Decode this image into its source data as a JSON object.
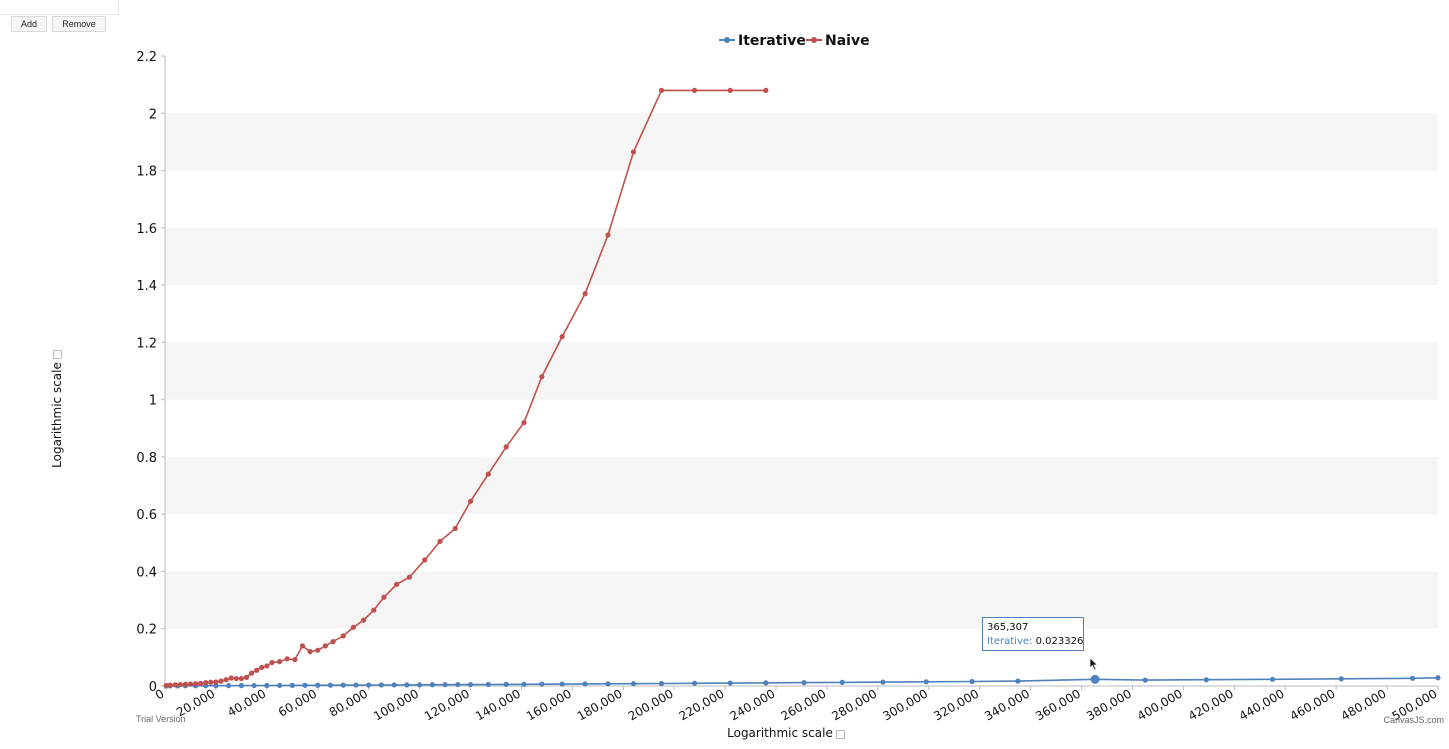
{
  "controls": {
    "add_label": "Add",
    "remove_label": "Remove"
  },
  "y_axis_checkbox_label": "Logarithmic scale",
  "x_axis_checkbox_label": "Logarithmic scale",
  "watermark_left": "Trial Version",
  "watermark_right": "CanvasJS.com",
  "tooltip": {
    "x_value": "365,307",
    "series_name": "Iterative:",
    "y_value": "0.023326"
  },
  "colors": {
    "iterative": "#4f81bc",
    "naive": "#c0504d",
    "band": "#f5f5f5",
    "axis": "#bbbbbb"
  },
  "chart_data": {
    "type": "line",
    "title": "",
    "xlabel": "Logarithmic scale",
    "ylabel": "Logarithmic scale",
    "xlim": [
      0,
      500000
    ],
    "ylim": [
      0,
      2.2
    ],
    "x_ticks": [
      "0",
      "20,000",
      "40,000",
      "60,000",
      "80,000",
      "100,000",
      "120,000",
      "140,000",
      "160,000",
      "180,000",
      "200,000",
      "220,000",
      "240,000",
      "260,000",
      "280,000",
      "300,000",
      "320,000",
      "340,000",
      "360,000",
      "380,000",
      "400,000",
      "420,000",
      "440,000",
      "460,000",
      "480,000",
      "500,000"
    ],
    "y_ticks": [
      "0",
      "0.2",
      "0.4",
      "0.6",
      "0.8",
      "1",
      "1.2",
      "1.4",
      "1.6",
      "1.8",
      "2",
      "2.2"
    ],
    "legend": "top-center",
    "grid": "alternating horizontal bands",
    "series": [
      {
        "name": "Iterative",
        "x": [
          500,
          2000,
          5000,
          8000,
          12000,
          16000,
          20000,
          25000,
          30000,
          35000,
          40000,
          45000,
          50000,
          55000,
          60000,
          65000,
          70000,
          75000,
          80000,
          85000,
          90000,
          95000,
          100000,
          105000,
          110000,
          115000,
          120000,
          127000,
          134000,
          141000,
          148000,
          156000,
          165000,
          174000,
          184000,
          195000,
          208000,
          222000,
          236000,
          251000,
          266000,
          282000,
          299000,
          317000,
          335000,
          365307,
          385000,
          409000,
          435000,
          462000,
          490000,
          519000
        ],
        "y": [
          0.0,
          0.0002,
          0.0004,
          0.0006,
          0.0008,
          0.001,
          0.0011,
          0.0012,
          0.0014,
          0.0016,
          0.0018,
          0.002,
          0.0022,
          0.0024,
          0.0026,
          0.0028,
          0.003,
          0.0032,
          0.0034,
          0.0036,
          0.0038,
          0.004,
          0.0042,
          0.0044,
          0.0046,
          0.0048,
          0.005,
          0.0053,
          0.0056,
          0.006,
          0.0064,
          0.0068,
          0.0072,
          0.0077,
          0.0082,
          0.0088,
          0.0095,
          0.0103,
          0.011,
          0.0118,
          0.0126,
          0.0136,
          0.0147,
          0.0158,
          0.0172,
          0.023326,
          0.0205,
          0.0219,
          0.0233,
          0.025,
          0.0268,
          0.0287
        ]
      },
      {
        "name": "Naive",
        "x": [
          500,
          2000,
          4000,
          6000,
          8000,
          10000,
          12000,
          14000,
          16000,
          18000,
          20000,
          22000,
          24000,
          26000,
          28000,
          30000,
          32000,
          34000,
          36000,
          38000,
          40000,
          42000,
          45000,
          48000,
          51000,
          54000,
          57000,
          60000,
          63000,
          66000,
          70000,
          74000,
          78000,
          82000,
          86000,
          91000,
          96000,
          102000,
          108000,
          114000,
          120000,
          127000,
          134000,
          141000,
          148000,
          156000,
          165000,
          174000,
          184000,
          195000,
          208000,
          222000,
          236000
        ],
        "y": [
          0.002,
          0.003,
          0.004,
          0.005,
          0.006,
          0.007,
          0.008,
          0.009,
          0.012,
          0.013,
          0.014,
          0.017,
          0.022,
          0.028,
          0.026,
          0.026,
          0.03,
          0.045,
          0.055,
          0.065,
          0.07,
          0.082,
          0.085,
          0.095,
          0.092,
          0.14,
          0.12,
          0.125,
          0.14,
          0.155,
          0.175,
          0.205,
          0.23,
          0.265,
          0.31,
          0.355,
          0.38,
          0.44,
          0.505,
          0.55,
          0.645,
          0.74,
          0.835,
          0.92,
          1.08,
          1.22,
          1.37,
          1.575,
          1.865,
          2.08,
          2.08,
          2.08,
          2.08
        ]
      }
    ]
  }
}
